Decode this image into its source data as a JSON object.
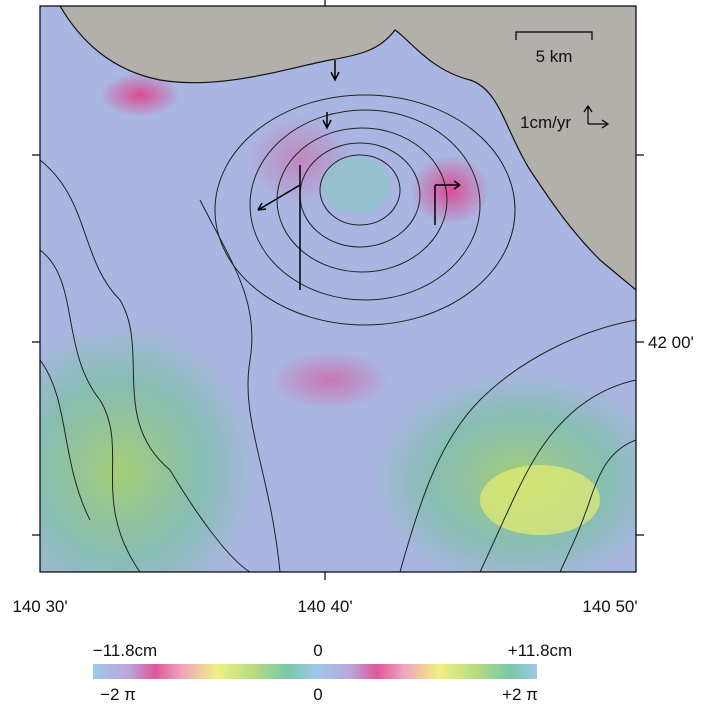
{
  "scale_bar": {
    "label": "5 km"
  },
  "velocity_scale": {
    "label": "1cm/yr"
  },
  "axes": {
    "lat_labels": [
      "42 00'"
    ],
    "lon_labels": [
      "140 30'",
      "140 40'",
      "140 50'"
    ]
  },
  "colorbar": {
    "top_labels": [
      "−11.8cm",
      "0",
      "+11.8cm"
    ],
    "bottom_labels": [
      "−2 π",
      "0",
      "+2 π"
    ]
  }
}
